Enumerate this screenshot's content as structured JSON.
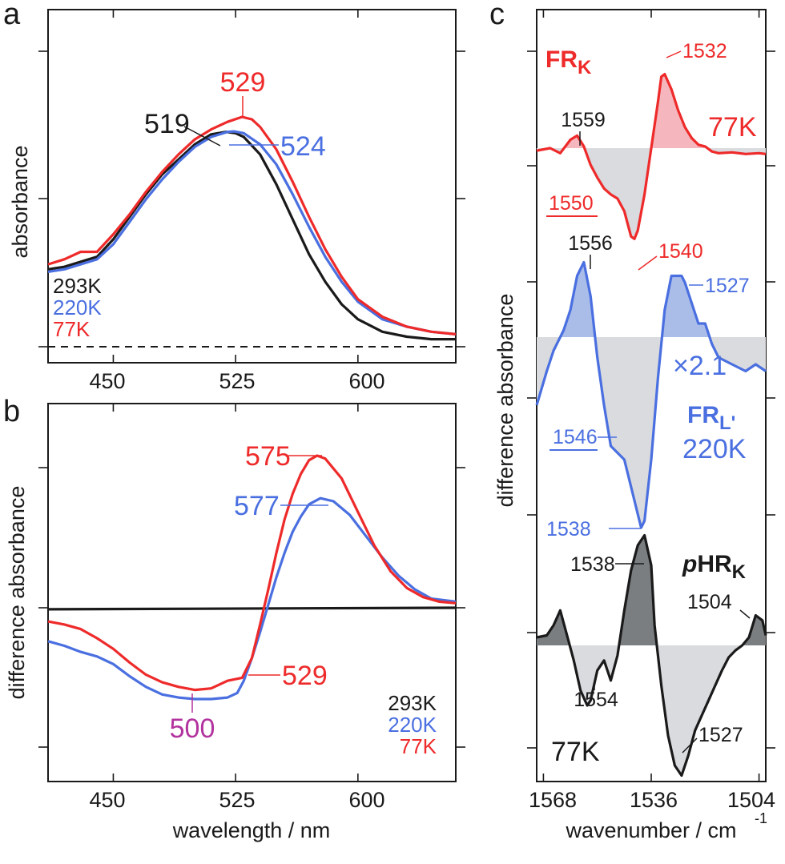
{
  "colors": {
    "black": "#1a1a1a",
    "blue": "#4a6fe0",
    "red": "#ee2a2a",
    "magenta": "#b2329e",
    "gray_fill": "#d9dbde",
    "red_fill": "#f5b7bd",
    "blue_fill": "#aabde9",
    "dark_fill": "#7b7e80"
  },
  "chart_data": [
    {
      "panel": "a",
      "type": "line",
      "xlabel": "",
      "ylabel": "absorbance",
      "xlim": [
        410,
        660
      ],
      "xticks": [
        450,
        525,
        600
      ],
      "baseline": "dashed",
      "legend": [
        "293K",
        "220K",
        "77K"
      ],
      "series": [
        {
          "name": "293K",
          "color": "#1a1a1a",
          "x": [
            410,
            420,
            430,
            440,
            450,
            460,
            470,
            480,
            490,
            500,
            510,
            519,
            525,
            530,
            540,
            550,
            560,
            570,
            580,
            590,
            600,
            615,
            630,
            645,
            660
          ],
          "y": [
            0.31,
            0.32,
            0.34,
            0.36,
            0.43,
            0.52,
            0.61,
            0.69,
            0.75,
            0.81,
            0.85,
            0.86,
            0.855,
            0.84,
            0.77,
            0.65,
            0.51,
            0.37,
            0.26,
            0.17,
            0.11,
            0.06,
            0.04,
            0.03,
            0.03
          ]
        },
        {
          "name": "220K",
          "color": "#4a6fe0",
          "x": [
            410,
            420,
            430,
            440,
            450,
            460,
            470,
            480,
            490,
            500,
            510,
            520,
            524,
            530,
            540,
            550,
            560,
            570,
            580,
            590,
            600,
            615,
            630,
            645,
            660
          ],
          "y": [
            0.3,
            0.31,
            0.33,
            0.35,
            0.41,
            0.5,
            0.59,
            0.67,
            0.74,
            0.8,
            0.84,
            0.86,
            0.862,
            0.855,
            0.81,
            0.73,
            0.61,
            0.48,
            0.36,
            0.26,
            0.18,
            0.11,
            0.08,
            0.06,
            0.05
          ]
        },
        {
          "name": "77K",
          "color": "#ee2a2a",
          "x": [
            410,
            420,
            430,
            440,
            450,
            460,
            470,
            480,
            490,
            500,
            510,
            520,
            529,
            535,
            540,
            550,
            560,
            570,
            580,
            590,
            600,
            615,
            630,
            645,
            660
          ],
          "y": [
            0.33,
            0.35,
            0.38,
            0.38,
            0.45,
            0.53,
            0.62,
            0.7,
            0.77,
            0.83,
            0.87,
            0.9,
            0.92,
            0.91,
            0.88,
            0.79,
            0.66,
            0.52,
            0.39,
            0.28,
            0.19,
            0.12,
            0.08,
            0.06,
            0.05
          ]
        }
      ],
      "peaks": [
        {
          "label": "519",
          "x": 519,
          "color": "#1a1a1a"
        },
        {
          "label": "524",
          "x": 524,
          "color": "#4a6fe0"
        },
        {
          "label": "529",
          "x": 529,
          "color": "#ee2a2a"
        }
      ]
    },
    {
      "panel": "b",
      "type": "line",
      "xlabel": "wavelength / nm",
      "ylabel": "difference absorbance",
      "xlim": [
        410,
        660
      ],
      "xticks": [
        450,
        525,
        600
      ],
      "legend": [
        "293K",
        "220K",
        "77K"
      ],
      "series": [
        {
          "name": "293K",
          "color": "#1a1a1a",
          "x": [
            410,
            660
          ],
          "y": [
            -0.01,
            0.0
          ]
        },
        {
          "name": "220K",
          "color": "#4a6fe0",
          "x": [
            410,
            420,
            430,
            440,
            450,
            460,
            470,
            480,
            490,
            500,
            510,
            520,
            526,
            530,
            535,
            540,
            545,
            550,
            555,
            560,
            565,
            570,
            577,
            585,
            595,
            605,
            615,
            625,
            635,
            645,
            660
          ],
          "y": [
            -0.22,
            -0.25,
            -0.29,
            -0.32,
            -0.37,
            -0.45,
            -0.52,
            -0.57,
            -0.59,
            -0.6,
            -0.6,
            -0.59,
            -0.56,
            -0.48,
            -0.33,
            -0.16,
            0.02,
            0.2,
            0.36,
            0.5,
            0.6,
            0.68,
            0.72,
            0.7,
            0.61,
            0.47,
            0.33,
            0.21,
            0.12,
            0.06,
            0.04
          ]
        },
        {
          "name": "77K",
          "color": "#ee2a2a",
          "x": [
            410,
            420,
            430,
            440,
            450,
            460,
            470,
            480,
            490,
            500,
            510,
            520,
            529,
            535,
            540,
            545,
            550,
            555,
            560,
            565,
            570,
            575,
            580,
            590,
            600,
            610,
            620,
            630,
            640,
            650,
            660
          ],
          "y": [
            -0.09,
            -0.11,
            -0.14,
            -0.2,
            -0.27,
            -0.36,
            -0.44,
            -0.49,
            -0.52,
            -0.54,
            -0.53,
            -0.48,
            -0.46,
            -0.33,
            -0.11,
            0.12,
            0.36,
            0.58,
            0.75,
            0.88,
            0.97,
            1.0,
            0.98,
            0.85,
            0.63,
            0.41,
            0.24,
            0.13,
            0.07,
            0.04,
            0.03
          ]
        }
      ],
      "peaks": [
        {
          "label": "575",
          "x": 575,
          "color": "#ee2a2a"
        },
        {
          "label": "577",
          "x": 577,
          "color": "#4a6fe0"
        },
        {
          "label": "529",
          "x": 529,
          "color": "#ee2a2a"
        },
        {
          "label": "500",
          "x": 500,
          "color": "#b2329e"
        }
      ]
    },
    {
      "panel": "c",
      "type": "line",
      "xlabel": "wavenumber / cm",
      "xlabel_sup": "-1",
      "ylabel": "difference absorbance",
      "xlim": [
        1570,
        1502
      ],
      "xticks": [
        1568,
        1536,
        1504
      ],
      "series": [
        {
          "name": "FR_K 77K",
          "color": "#ee2a2a",
          "x": [
            1570,
            1566,
            1563,
            1560,
            1558,
            1556,
            1554,
            1552,
            1550,
            1548,
            1546,
            1544,
            1542,
            1541,
            1540,
            1538,
            1536,
            1534,
            1533,
            1532,
            1530,
            1528,
            1526,
            1524,
            1522,
            1520,
            1518,
            1516,
            1512,
            1508,
            1504,
            1502
          ],
          "y": [
            -0.03,
            0.0,
            -0.06,
            0.1,
            0.15,
            0.02,
            -0.2,
            -0.35,
            -0.48,
            -0.55,
            -0.6,
            -0.75,
            -1.05,
            -1.08,
            -0.98,
            -0.55,
            0.0,
            0.55,
            0.85,
            0.88,
            0.7,
            0.45,
            0.25,
            0.12,
            0.04,
            0.02,
            -0.04,
            -0.06,
            -0.05,
            -0.07,
            -0.06,
            -0.07
          ]
        },
        {
          "name": "FR_L' 220K",
          "color": "#4a6fe0",
          "x": [
            1570,
            1567,
            1565,
            1562,
            1560,
            1558,
            1556,
            1554,
            1552,
            1550,
            1548,
            1546,
            1544,
            1542,
            1540,
            1539,
            1538,
            1536,
            1534,
            1532,
            1530,
            1528,
            1527,
            1526,
            1524,
            1522,
            1520,
            1518,
            1516,
            1512,
            1508,
            1505,
            1502
          ],
          "y": [
            -0.5,
            -0.25,
            -0.1,
            0.05,
            0.2,
            0.45,
            0.55,
            0.3,
            -0.15,
            -0.5,
            -0.8,
            -0.85,
            -0.9,
            -1.1,
            -1.3,
            -1.4,
            -1.35,
            -0.9,
            -0.3,
            0.2,
            0.45,
            0.45,
            0.45,
            0.4,
            0.25,
            0.1,
            0.1,
            -0.05,
            -0.15,
            -0.2,
            -0.25,
            -0.2,
            -0.25
          ]
        },
        {
          "name": "pHR_K 77K",
          "color": "#1a1a1a",
          "x": [
            1570,
            1567,
            1565,
            1563,
            1561,
            1559,
            1557,
            1555,
            1554,
            1552,
            1550,
            1548,
            1546,
            1544,
            1542,
            1540,
            1538,
            1536,
            1535,
            1533,
            1531,
            1529,
            1527,
            1525,
            1523,
            1521,
            1519,
            1517,
            1515,
            1513,
            1511,
            1509,
            1507,
            1505,
            1503,
            1502
          ],
          "y": [
            0.08,
            0.1,
            0.2,
            0.35,
            0.1,
            -0.15,
            -0.45,
            -0.6,
            -0.55,
            -0.25,
            -0.15,
            -0.35,
            -0.1,
            0.35,
            0.75,
            1.0,
            1.1,
            0.8,
            0.2,
            -0.4,
            -0.9,
            -1.2,
            -1.3,
            -1.1,
            -0.85,
            -0.7,
            -0.55,
            -0.4,
            -0.25,
            -0.12,
            -0.05,
            0.0,
            0.08,
            0.3,
            0.25,
            0.1
          ]
        }
      ],
      "peaks": [
        {
          "label": "1532",
          "color": "#ee2a2a"
        },
        {
          "label": "1559",
          "color": "#1a1a1a"
        },
        {
          "label": "1550",
          "color": "#ee2a2a"
        },
        {
          "label": "1540",
          "color": "#ee2a2a"
        },
        {
          "label": "1556",
          "color": "#1a1a1a"
        },
        {
          "label": "1527",
          "color": "#4a6fe0"
        },
        {
          "label": "1546",
          "color": "#4a6fe0"
        },
        {
          "label": "1538",
          "color": "#4a6fe0"
        },
        {
          "label": "1538",
          "color": "#1a1a1a"
        },
        {
          "label": "1504",
          "color": "#1a1a1a"
        },
        {
          "label": "1554",
          "color": "#1a1a1a"
        },
        {
          "label": "1527",
          "color": "#1a1a1a"
        }
      ]
    }
  ],
  "labels": {
    "panel_a": "a",
    "panel_b": "b",
    "panel_c": "c",
    "a_ylabel": "absorbance",
    "b_ylabel": "difference absorbance",
    "b_xlabel": "wavelength / nm",
    "c_ylabel": "difference absorbance",
    "c_xlabel": "wavenumber / cm",
    "c_xlabel_sup": "-1",
    "a_pk_519": "519",
    "a_pk_524": "524",
    "a_pk_529": "529",
    "a_leg_293": "293K",
    "a_leg_220": "220K",
    "a_leg_77": "77K",
    "b_pk_575": "575",
    "b_pk_577": "577",
    "b_pk_529": "529",
    "b_pk_500": "500",
    "b_leg_293": "293K",
    "b_leg_220": "220K",
    "b_leg_77": "77K",
    "tick_450": "450",
    "tick_525": "525",
    "tick_600": "600",
    "tick_1568": "1568",
    "tick_1536": "1536",
    "tick_1504": "1504",
    "fr_k_main": "FR",
    "fr_k_sub": "K",
    "fr_k_temp": "77K",
    "fr_l_main": "FR",
    "fr_l_sub": "L'",
    "fr_l_temp": "220K",
    "fr_l_scale": "×2.1",
    "phr_p": "p",
    "phr_main": "HR",
    "phr_sub": "K",
    "phr_temp": "77K",
    "c_1532": "1532",
    "c_1559": "1559",
    "c_1550": "1550",
    "c_1540": "1540",
    "c_1556": "1556",
    "c_1527b": "1527",
    "c_1546": "1546",
    "c_1538b": "1538",
    "c_1538k": "1538",
    "c_1504": "1504",
    "c_1554": "1554",
    "c_1527k": "1527"
  }
}
